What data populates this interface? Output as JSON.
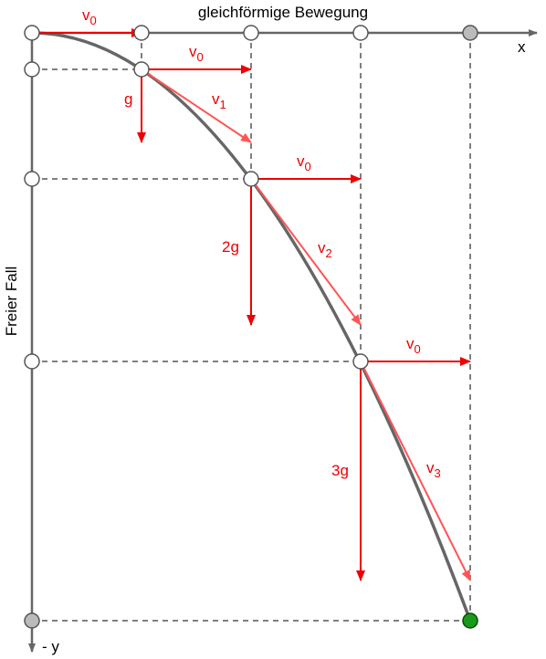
{
  "title": "gleichförmige Bewegung",
  "x_axis_label": "x",
  "y_axis_label": "Freier Fall",
  "y_axis_end_label": "- y",
  "labels": {
    "v0_a": {
      "base": "v",
      "sub": "0"
    },
    "v0_b": {
      "base": "v",
      "sub": "0"
    },
    "v0_c": {
      "base": "v",
      "sub": "0"
    },
    "v0_d": {
      "base": "v",
      "sub": "0"
    },
    "v1": {
      "base": "v",
      "sub": "1"
    },
    "v2": {
      "base": "v",
      "sub": "2"
    },
    "v3": {
      "base": "v",
      "sub": "3"
    },
    "g1": "g",
    "g2": "2g",
    "g3": "3g"
  }
}
